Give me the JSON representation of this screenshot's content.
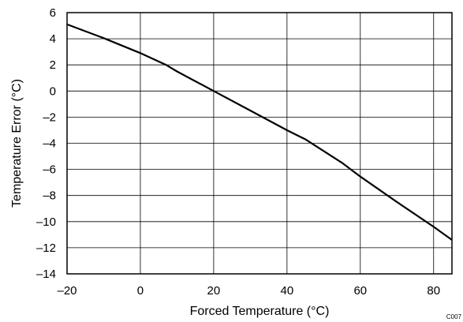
{
  "chart_data": {
    "type": "line",
    "title": "",
    "xlabel": "Forced Temperature (°C)",
    "ylabel": "Temperature Error (°C)",
    "xlim": [
      -20,
      85
    ],
    "ylim": [
      -14,
      6
    ],
    "xticks": [
      -20,
      0,
      20,
      40,
      60,
      80
    ],
    "yticks": [
      6,
      4,
      2,
      0,
      -2,
      -4,
      -6,
      -8,
      -10,
      -12,
      -14
    ],
    "xtick_labels": [
      "–20",
      "0",
      "20",
      "40",
      "60",
      "80"
    ],
    "ytick_labels": [
      "6",
      "4",
      "2",
      "0",
      "–2",
      "–4",
      "–6",
      "–8",
      "–10",
      "–12",
      "–14"
    ],
    "grid": true,
    "series": [
      {
        "x": [
          -20,
          -10,
          0,
          7,
          10,
          20,
          30,
          40,
          45,
          55,
          60,
          70,
          80,
          85
        ],
        "y": [
          5.1,
          4.05,
          2.9,
          2.0,
          1.5,
          0.0,
          -1.5,
          -3.0,
          -3.7,
          -5.5,
          -6.55,
          -8.5,
          -10.4,
          -11.4
        ],
        "color": "#000000"
      }
    ],
    "footnote": "C007"
  }
}
